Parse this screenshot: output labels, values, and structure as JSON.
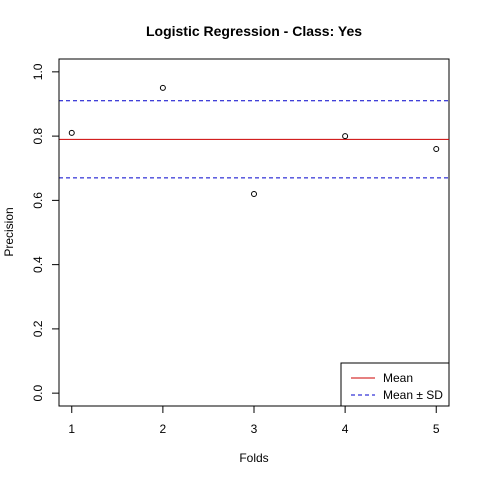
{
  "chart_data": {
    "type": "scatter",
    "title": "Logistic Regression - Class: Yes",
    "xlabel": "Folds",
    "ylabel": "Precision",
    "x": [
      1,
      2,
      3,
      4,
      5
    ],
    "y": [
      0.81,
      0.95,
      0.62,
      0.8,
      0.76
    ],
    "xlim": [
      0.86,
      5.14
    ],
    "ylim": [
      -0.04,
      1.04
    ],
    "xticks": [
      "1",
      "2",
      "3",
      "4",
      "5"
    ],
    "yticks": [
      "0.0",
      "0.2",
      "0.4",
      "0.6",
      "0.8",
      "1.0"
    ],
    "mean": 0.79,
    "mean_plus_sd": 0.91,
    "mean_minus_sd": 0.67,
    "mean_color": "#cc0000",
    "sd_color": "#0000cc",
    "grid": false,
    "legend": {
      "placement": "bottom-right",
      "entries": [
        "Mean",
        "Mean ± SD"
      ]
    }
  }
}
